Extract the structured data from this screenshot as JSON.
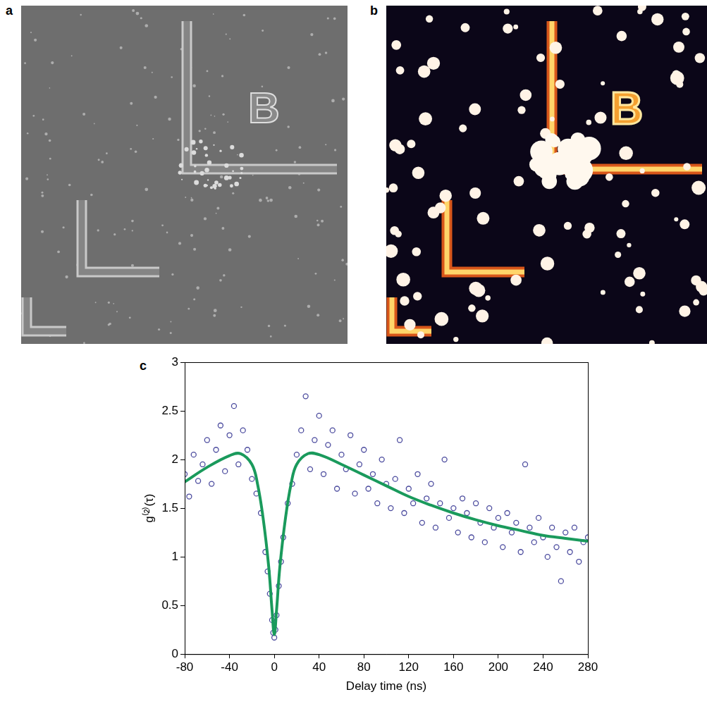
{
  "image_panels": [
    {
      "label": "a",
      "marks": "B"
    },
    {
      "label": "b",
      "marks": "B"
    }
  ],
  "chart_data": {
    "label": "c",
    "type": "scatter",
    "x_label": "Delay time (ns)",
    "y_label": "g⁽²⁾(τ)",
    "xlim": [
      -80,
      280
    ],
    "xticks": [
      -80,
      -40,
      0,
      40,
      80,
      120,
      160,
      200,
      240,
      280
    ],
    "ylim": [
      0,
      3
    ],
    "yticks": [
      0,
      0.5,
      1,
      1.5,
      2,
      2.5,
      3
    ],
    "grid": false,
    "series": [
      {
        "type": "scatter",
        "color": "#4b4b9e",
        "marker": "circle",
        "x": [
          -80,
          -76,
          -72,
          -68,
          -64,
          -60,
          -56,
          -52,
          -48,
          -44,
          -40,
          -36,
          -32,
          -28,
          -24,
          -20,
          -16,
          -12,
          -8,
          -6,
          -4,
          -2,
          -1,
          0,
          1,
          2,
          4,
          6,
          8,
          12,
          16,
          20,
          24,
          28,
          32,
          36,
          40,
          44,
          48,
          52,
          56,
          60,
          64,
          68,
          72,
          76,
          80,
          84,
          88,
          92,
          96,
          100,
          104,
          108,
          112,
          116,
          120,
          124,
          128,
          132,
          136,
          140,
          144,
          148,
          152,
          156,
          160,
          164,
          168,
          172,
          176,
          180,
          184,
          188,
          192,
          196,
          200,
          204,
          208,
          212,
          216,
          220,
          224,
          228,
          232,
          236,
          240,
          244,
          248,
          252,
          256,
          260,
          264,
          268,
          272,
          276,
          280
        ],
        "values": [
          1.85,
          1.62,
          2.05,
          1.78,
          1.95,
          2.2,
          1.75,
          2.1,
          2.35,
          1.88,
          2.25,
          2.55,
          1.95,
          2.3,
          2.1,
          1.8,
          1.65,
          1.45,
          1.05,
          0.85,
          0.62,
          0.35,
          0.22,
          0.17,
          0.25,
          0.4,
          0.7,
          0.95,
          1.2,
          1.55,
          1.75,
          2.05,
          2.3,
          2.65,
          1.9,
          2.2,
          2.45,
          1.85,
          2.15,
          2.3,
          1.7,
          2.05,
          1.9,
          2.25,
          1.65,
          1.95,
          2.1,
          1.7,
          1.85,
          1.55,
          2.0,
          1.75,
          1.5,
          1.8,
          2.2,
          1.45,
          1.7,
          1.55,
          1.85,
          1.35,
          1.6,
          1.75,
          1.3,
          1.55,
          2.0,
          1.4,
          1.5,
          1.25,
          1.6,
          1.45,
          1.2,
          1.55,
          1.35,
          1.15,
          1.5,
          1.3,
          1.4,
          1.1,
          1.45,
          1.25,
          1.35,
          1.05,
          1.95,
          1.3,
          1.15,
          1.4,
          1.2,
          1.0,
          1.3,
          1.1,
          0.75,
          1.25,
          1.05,
          1.3,
          0.95,
          1.15,
          1.2
        ]
      },
      {
        "type": "line",
        "color": "#1a9a5c",
        "line_style": "solid",
        "x": [
          -80,
          -60,
          -40,
          -30,
          -20,
          -15,
          -10,
          -5,
          -2,
          0,
          2,
          5,
          10,
          15,
          20,
          30,
          40,
          60,
          80,
          100,
          120,
          140,
          160,
          180,
          200,
          220,
          240,
          260,
          280
        ],
        "values": [
          1.77,
          1.92,
          2.04,
          2.06,
          1.95,
          1.75,
          1.4,
          0.9,
          0.45,
          0.2,
          0.45,
          0.9,
          1.4,
          1.75,
          1.95,
          2.06,
          2.05,
          1.95,
          1.84,
          1.73,
          1.62,
          1.53,
          1.45,
          1.38,
          1.32,
          1.27,
          1.22,
          1.19,
          1.16
        ]
      }
    ]
  }
}
